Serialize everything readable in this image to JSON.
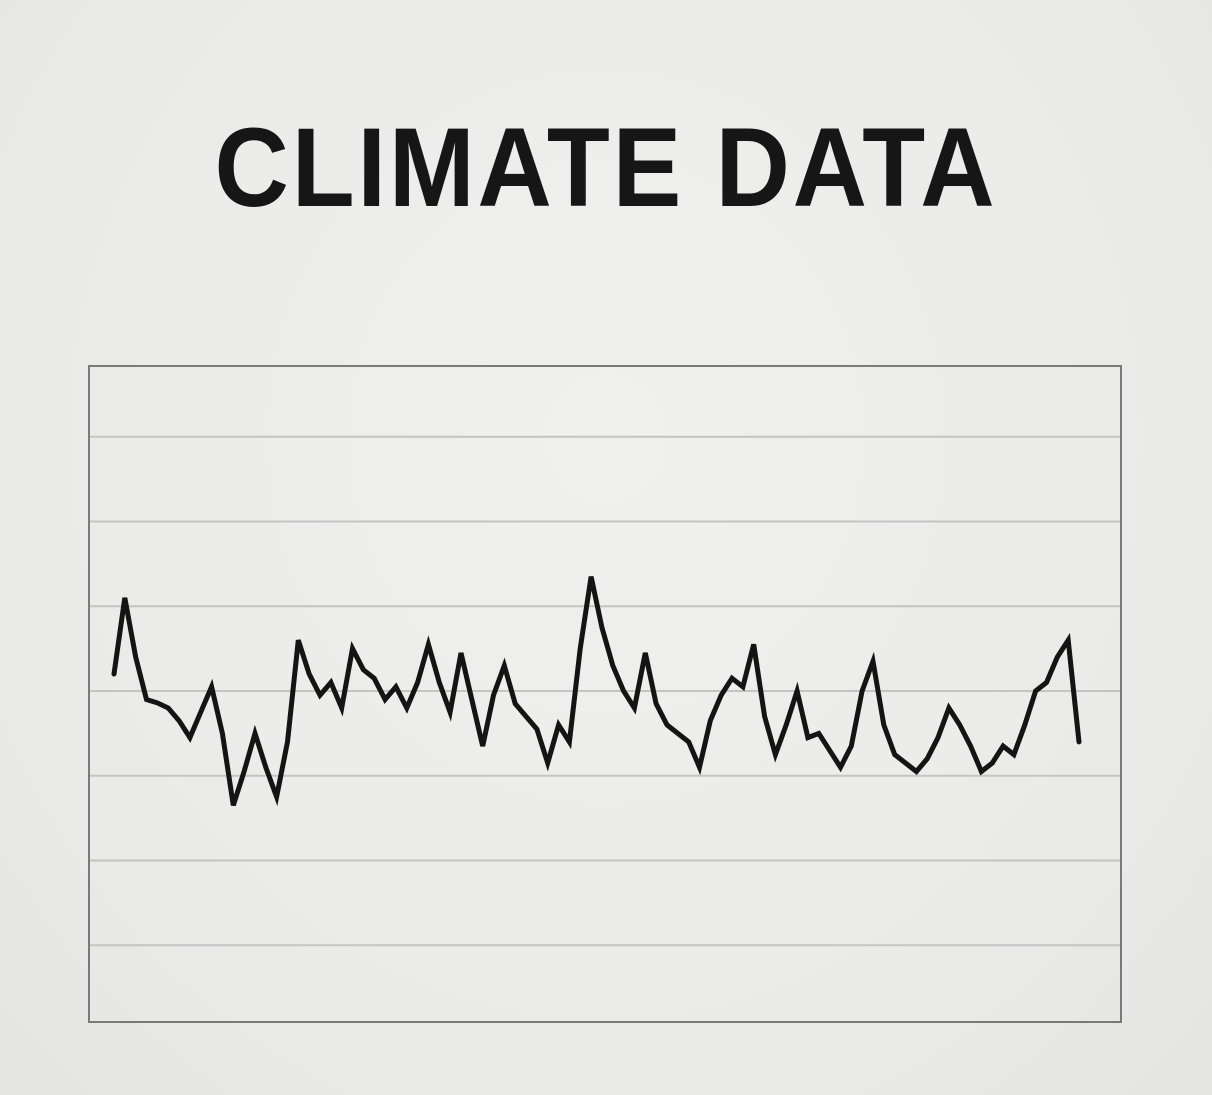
{
  "chart_data": {
    "type": "line",
    "title": "CLIMATE DATA",
    "xlabel": "",
    "ylabel": "",
    "ylim": [
      0,
      8
    ],
    "grid": true,
    "legend": "none",
    "x": [
      1,
      2,
      3,
      4,
      5,
      6,
      7,
      8,
      9,
      10,
      11,
      12,
      13,
      14,
      15,
      16,
      17,
      18,
      19,
      20,
      21,
      22,
      23,
      24,
      25,
      26,
      27,
      28,
      29,
      30,
      31,
      32,
      33,
      34,
      35,
      36,
      37,
      38,
      39,
      40,
      41,
      42,
      43,
      44,
      45,
      46,
      47,
      48,
      49,
      50,
      51,
      52,
      53,
      54,
      55,
      56,
      57,
      58,
      59,
      60,
      61,
      62,
      63,
      64,
      65,
      66,
      67,
      68,
      69,
      70,
      71,
      72,
      73,
      74,
      75,
      76,
      77,
      78,
      79,
      80,
      81,
      82,
      83,
      84,
      85,
      86,
      87,
      88,
      89,
      90
    ],
    "series": [
      {
        "values": [
          4.2,
          5.1,
          4.4,
          3.9,
          3.86,
          3.8,
          3.65,
          3.45,
          3.75,
          4.05,
          3.5,
          2.65,
          3.05,
          3.5,
          3.1,
          2.75,
          3.4,
          4.6,
          4.2,
          3.95,
          4.1,
          3.8,
          4.5,
          4.25,
          4.15,
          3.9,
          4.05,
          3.8,
          4.1,
          4.55,
          4.1,
          3.75,
          4.45,
          3.9,
          3.35,
          3.95,
          4.3,
          3.85,
          3.7,
          3.55,
          3.15,
          3.6,
          3.4,
          4.5,
          5.35,
          4.75,
          4.3,
          4.0,
          3.8,
          4.45,
          3.85,
          3.6,
          3.5,
          3.4,
          3.1,
          3.65,
          3.95,
          4.15,
          4.05,
          4.55,
          3.7,
          3.25,
          3.6,
          4.0,
          3.45,
          3.5,
          3.3,
          3.1,
          3.35,
          4.0,
          4.35,
          3.6,
          3.25,
          3.15,
          3.05,
          3.2,
          3.45,
          3.8,
          3.6,
          3.35,
          3.05,
          3.15,
          3.35,
          3.25,
          3.6,
          4.0,
          4.1,
          4.4,
          4.6,
          3.4
        ],
        "color": "#141414"
      }
    ],
    "colors": {
      "line": "#141414",
      "grid": "#c4c4c4",
      "frame": "#7a7a7a"
    }
  }
}
